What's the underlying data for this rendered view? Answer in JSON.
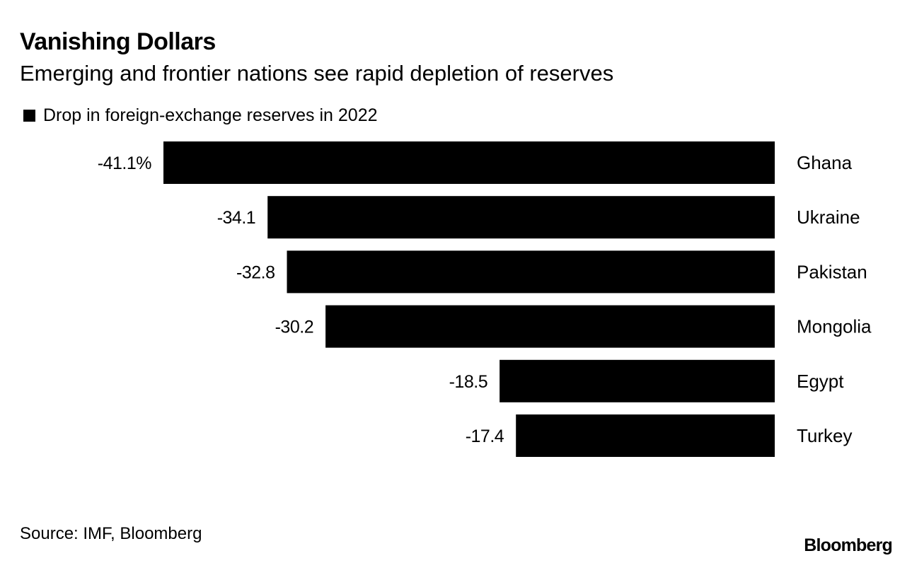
{
  "header": {
    "title": "Vanishing Dollars",
    "subtitle": "Emerging and frontier nations see rapid depletion of reserves"
  },
  "legend": {
    "label": "Drop in foreign-exchange reserves in 2022"
  },
  "footer": {
    "source": "Source: IMF, Bloomberg",
    "logo": "Bloomberg"
  },
  "colors": {
    "bar": "#000000",
    "text": "#000000",
    "background": "#ffffff"
  },
  "chart_data": {
    "type": "bar",
    "orientation": "horizontal",
    "title": "Vanishing Dollars",
    "subtitle": "Emerging and frontier nations see rapid depletion of reserves",
    "categories": [
      "Ghana",
      "Ukraine",
      "Pakistan",
      "Mongolia",
      "Egypt",
      "Turkey"
    ],
    "series": [
      {
        "name": "Drop in foreign-exchange reserves in 2022",
        "values": [
          -41.1,
          -34.1,
          -32.8,
          -30.2,
          -18.5,
          -17.4
        ]
      }
    ],
    "data_labels": [
      "-41.1%",
      "-34.1",
      "-32.8",
      "-30.2",
      "-18.5",
      "-17.4"
    ],
    "unit": "%",
    "xlim": [
      -41.1,
      0
    ],
    "grid": false,
    "legend_position": "top-left"
  }
}
